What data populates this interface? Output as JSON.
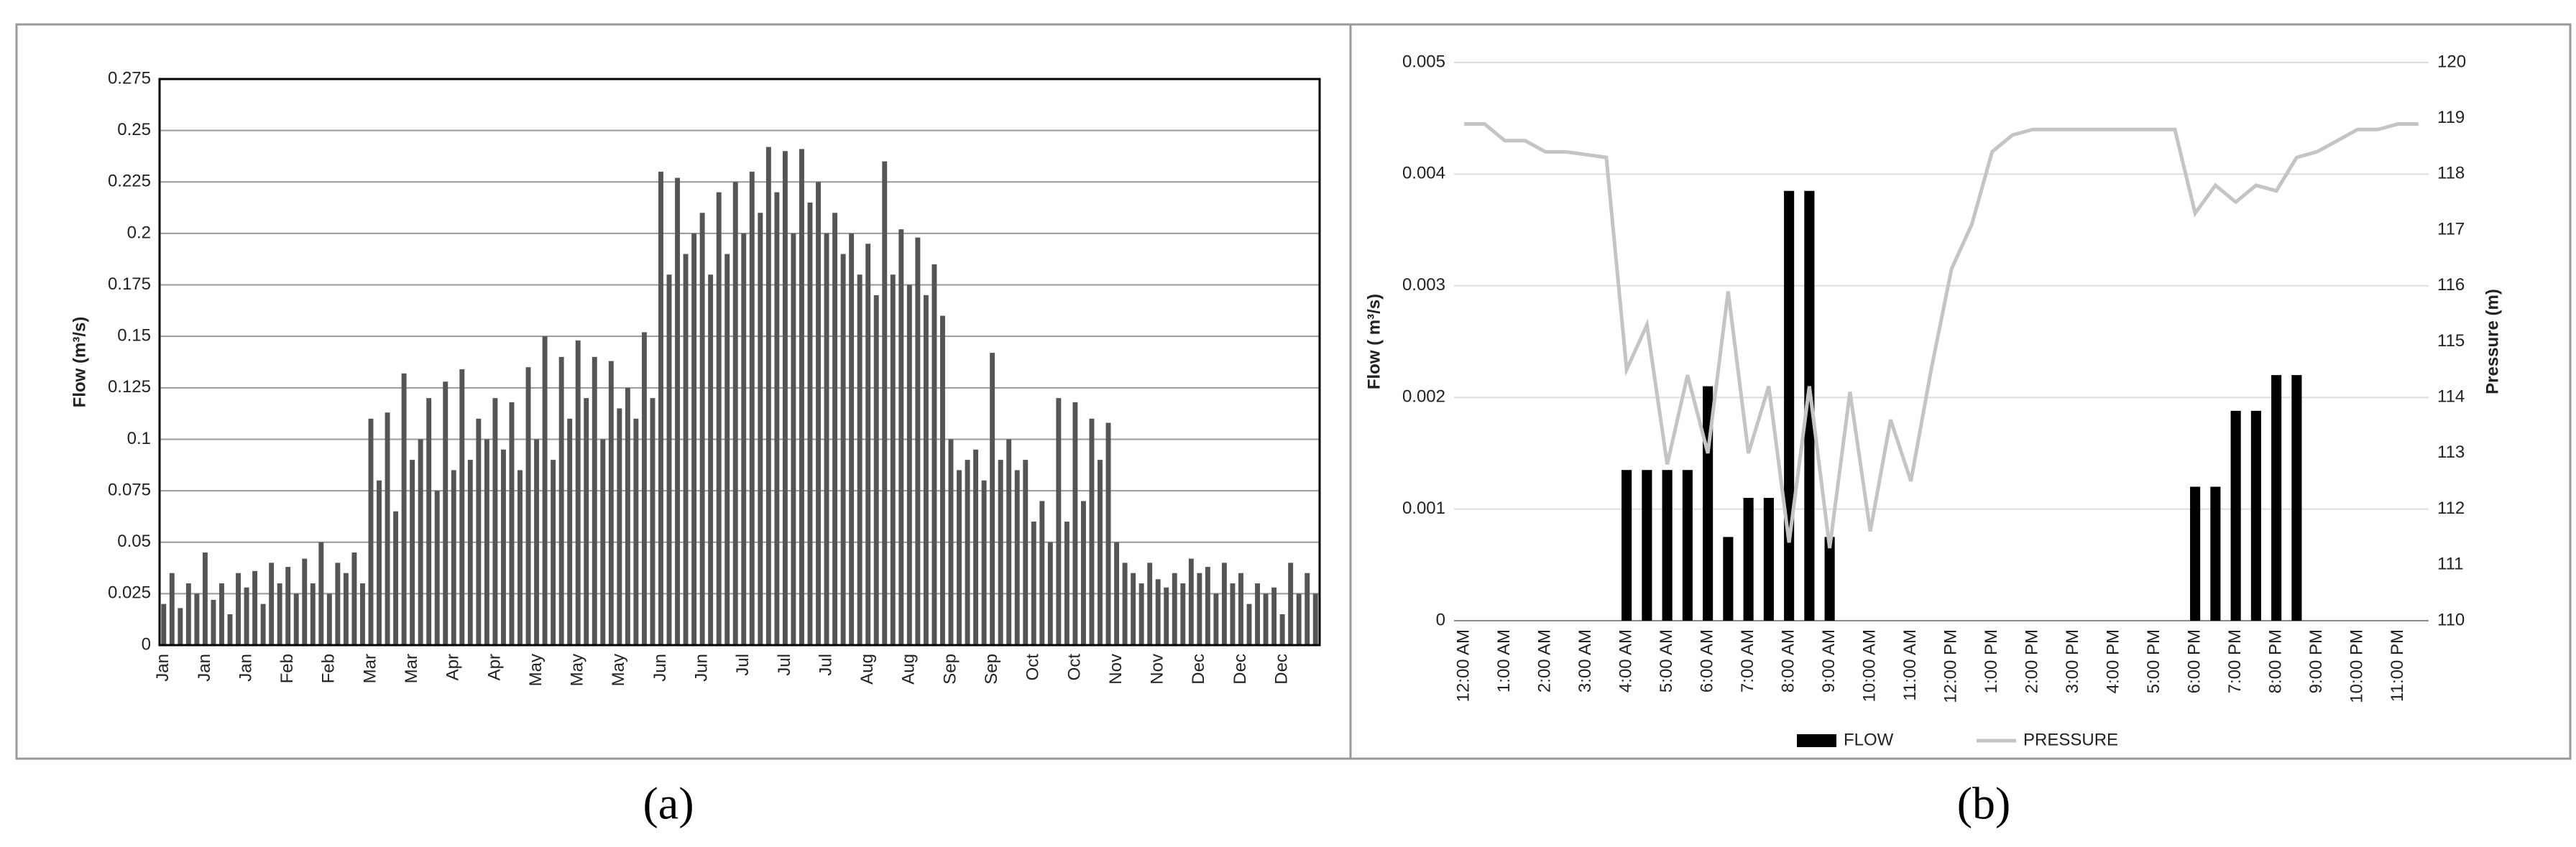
{
  "chart_data": [
    {
      "type": "bar",
      "caption": "(a)",
      "ylabel": "Flow (m³/s)",
      "color": "#555555",
      "grid": true,
      "ylim": [
        0,
        0.275
      ],
      "yticks": [
        0,
        0.025,
        0.05,
        0.075,
        0.1,
        0.125,
        0.15,
        0.175,
        0.2,
        0.225,
        0.25,
        0.275
      ],
      "categories": [
        "Jan",
        null,
        null,
        null,
        null,
        "Jan",
        null,
        null,
        null,
        null,
        "Jan",
        null,
        null,
        null,
        null,
        "Feb",
        null,
        null,
        null,
        null,
        "Feb",
        null,
        null,
        null,
        null,
        "Mar",
        null,
        null,
        null,
        null,
        "Mar",
        null,
        null,
        null,
        null,
        "Apr",
        null,
        null,
        null,
        null,
        "Apr",
        null,
        null,
        null,
        null,
        "May",
        null,
        null,
        null,
        null,
        "May",
        null,
        null,
        null,
        null,
        "May",
        null,
        null,
        null,
        null,
        "Jun",
        null,
        null,
        null,
        null,
        "Jun",
        null,
        null,
        null,
        null,
        "Jul",
        null,
        null,
        null,
        null,
        "Jul",
        null,
        null,
        null,
        null,
        "Jul",
        null,
        null,
        null,
        null,
        "Aug",
        null,
        null,
        null,
        null,
        "Aug",
        null,
        null,
        null,
        null,
        "Sep",
        null,
        null,
        null,
        null,
        "Sep",
        null,
        null,
        null,
        null,
        "Oct",
        null,
        null,
        null,
        null,
        "Oct",
        null,
        null,
        null,
        null,
        "Nov",
        null,
        null,
        null,
        null,
        "Nov",
        null,
        null,
        null,
        null,
        "Dec",
        null,
        null,
        null,
        null,
        "Dec",
        null,
        null,
        null,
        null,
        "Dec",
        null,
        null,
        null,
        null
      ],
      "values": [
        0.02,
        0.035,
        0.018,
        0.03,
        0.025,
        0.045,
        0.022,
        0.03,
        0.015,
        0.035,
        0.028,
        0.036,
        0.02,
        0.04,
        0.03,
        0.038,
        0.025,
        0.042,
        0.03,
        0.05,
        0.025,
        0.04,
        0.035,
        0.045,
        0.03,
        0.11,
        0.08,
        0.113,
        0.065,
        0.132,
        0.09,
        0.1,
        0.12,
        0.075,
        0.128,
        0.085,
        0.134,
        0.09,
        0.11,
        0.1,
        0.12,
        0.095,
        0.118,
        0.085,
        0.135,
        0.1,
        0.15,
        0.09,
        0.14,
        0.11,
        0.148,
        0.12,
        0.14,
        0.1,
        0.138,
        0.115,
        0.125,
        0.11,
        0.152,
        0.12,
        0.23,
        0.18,
        0.227,
        0.19,
        0.2,
        0.21,
        0.18,
        0.22,
        0.19,
        0.225,
        0.2,
        0.23,
        0.21,
        0.242,
        0.22,
        0.24,
        0.2,
        0.241,
        0.215,
        0.225,
        0.2,
        0.21,
        0.19,
        0.2,
        0.18,
        0.195,
        0.17,
        0.235,
        0.18,
        0.202,
        0.175,
        0.198,
        0.17,
        0.185,
        0.16,
        0.1,
        0.085,
        0.09,
        0.095,
        0.08,
        0.142,
        0.09,
        0.1,
        0.085,
        0.09,
        0.06,
        0.07,
        0.05,
        0.12,
        0.06,
        0.118,
        0.07,
        0.11,
        0.09,
        0.108,
        0.05,
        0.04,
        0.035,
        0.03,
        0.04,
        0.032,
        0.028,
        0.035,
        0.03,
        0.042,
        0.035,
        0.038,
        0.025,
        0.04,
        0.03,
        0.035,
        0.02,
        0.03,
        0.025,
        0.028,
        0.015,
        0.04,
        0.025,
        0.035,
        0.025
      ]
    },
    {
      "type": "bar_line",
      "caption": "(b)",
      "ylabel": "Flow ( m³/s)",
      "y2label": "Pressure (m)",
      "grid": true,
      "ylim": [
        0,
        0.005
      ],
      "yticks": [
        0,
        0.001,
        0.002,
        0.003,
        0.004,
        0.005
      ],
      "y2lim": [
        110,
        120
      ],
      "y2ticks": [
        110,
        111,
        112,
        113,
        114,
        115,
        116,
        117,
        118,
        119,
        120
      ],
      "categories": [
        "12:00 AM",
        null,
        "1:00 AM",
        null,
        "2:00 AM",
        null,
        "3:00 AM",
        null,
        "4:00 AM",
        null,
        "5:00 AM",
        null,
        "6:00 AM",
        null,
        "7:00 AM",
        null,
        "8:00 AM",
        null,
        "9:00 AM",
        null,
        "10:00 AM",
        null,
        "11:00 AM",
        null,
        "12:00 PM",
        null,
        "1:00 PM",
        null,
        "2:00 PM",
        null,
        "3:00 PM",
        null,
        "4:00 PM",
        null,
        "5:00 PM",
        null,
        "6:00 PM",
        null,
        "7:00 PM",
        null,
        "8:00 PM",
        null,
        "9:00 PM",
        null,
        "10:00 PM",
        null,
        "11:00 PM",
        null
      ],
      "series": [
        {
          "name": "FLOW",
          "color": "#000000",
          "values": [
            0,
            0,
            0,
            0,
            0,
            0,
            0,
            0,
            0.00135,
            0.00135,
            0.00135,
            0.00135,
            0.0021,
            0.00075,
            0.0011,
            0.0011,
            0.00385,
            0.00385,
            0.00075,
            0,
            0,
            0,
            0,
            0,
            0,
            0,
            0,
            0,
            0,
            0,
            0,
            0,
            0,
            0,
            0,
            0,
            0.0012,
            0.0012,
            0.00188,
            0.00188,
            0.0022,
            0.0022,
            0,
            0,
            0,
            0,
            0,
            0
          ]
        },
        {
          "name": "PRESSURE",
          "color": "#c4c4c4",
          "axis": "y2",
          "values": [
            118.9,
            118.9,
            118.6,
            118.6,
            118.4,
            118.4,
            118.35,
            118.3,
            114.5,
            115.3,
            112.8,
            114.4,
            113.0,
            115.9,
            113.0,
            114.2,
            111.4,
            114.2,
            111.3,
            114.1,
            111.6,
            113.6,
            112.5,
            114.5,
            116.3,
            117.1,
            118.4,
            118.7,
            118.8,
            118.8,
            118.8,
            118.8,
            118.8,
            118.8,
            118.8,
            118.8,
            117.3,
            117.8,
            117.5,
            117.8,
            117.7,
            118.3,
            118.4,
            118.6,
            118.8,
            118.8,
            118.9,
            118.9
          ]
        }
      ]
    }
  ]
}
